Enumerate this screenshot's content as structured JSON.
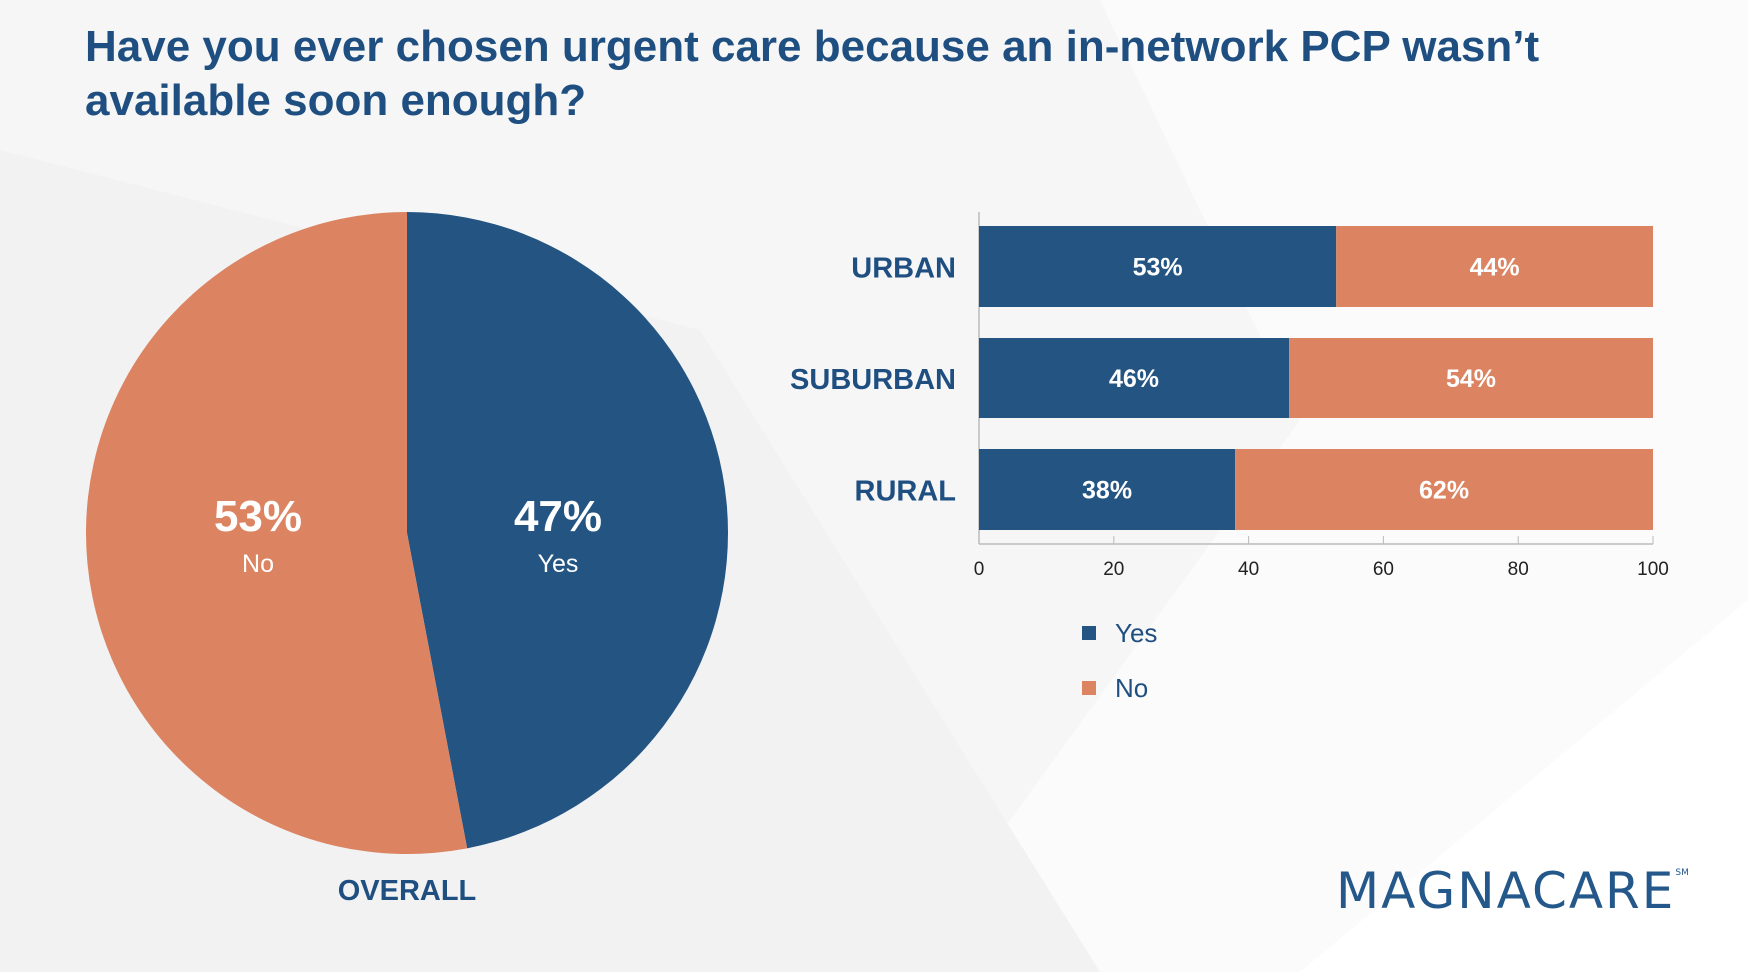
{
  "title": "Have you ever chosen urgent care because an in-network PCP wasn’t available soon enough?",
  "colors": {
    "yes": "#235482",
    "no": "#dc8461",
    "text": "#1f4f80"
  },
  "logo": {
    "text": "MAGNACARE",
    "mark": "SM"
  },
  "chart_data": [
    {
      "type": "pie",
      "title": "OVERALL",
      "slices": [
        {
          "label": "Yes",
          "value": 47,
          "display": "47%"
        },
        {
          "label": "No",
          "value": 53,
          "display": "53%"
        }
      ]
    },
    {
      "type": "bar",
      "orientation": "horizontal",
      "stacked": true,
      "categories": [
        "URBAN",
        "SUBURBAN",
        "RURAL"
      ],
      "series": [
        {
          "name": "Yes",
          "values": [
            53,
            46,
            38
          ],
          "labels": [
            "53%",
            "46%",
            "38%"
          ]
        },
        {
          "name": "No",
          "values": [
            44,
            54,
            62
          ],
          "labels": [
            "44%",
            "54%",
            "62%"
          ]
        }
      ],
      "xlim": [
        0,
        100
      ],
      "xticks": [
        "0",
        "20",
        "40",
        "60",
        "80",
        "100"
      ],
      "legend": {
        "placement": "bottom",
        "entries": [
          "Yes",
          "No"
        ]
      }
    }
  ]
}
